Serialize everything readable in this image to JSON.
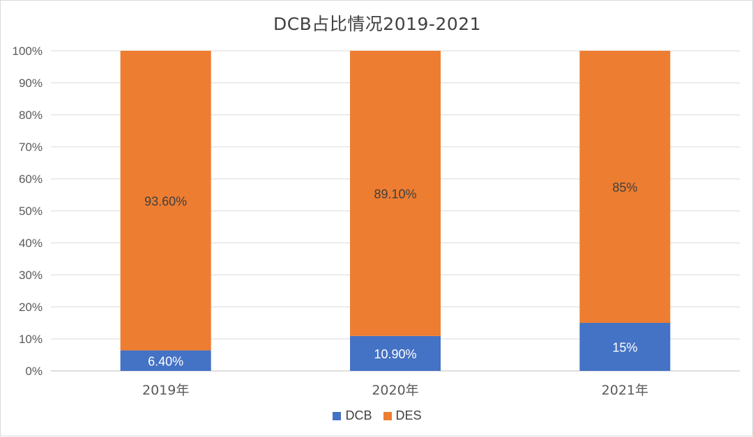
{
  "chart_data": {
    "type": "bar",
    "stacked": true,
    "title": "DCB占比情况2019-2021",
    "categories": [
      "2019年",
      "2020年",
      "2021年"
    ],
    "series": [
      {
        "name": "DCB",
        "color": "#4472c4",
        "values": [
          6.4,
          10.9,
          15
        ],
        "labels": [
          "6.40%",
          "10.90%",
          "15%"
        ]
      },
      {
        "name": "DES",
        "color": "#ed7d31",
        "values": [
          93.6,
          89.1,
          85
        ],
        "labels": [
          "93.60%",
          "89.10%",
          "85%"
        ]
      }
    ],
    "y_ticks": [
      "0%",
      "10%",
      "20%",
      "30%",
      "40%",
      "50%",
      "60%",
      "70%",
      "80%",
      "90%",
      "100%"
    ],
    "ylim": [
      0,
      100
    ],
    "grid": true,
    "legend_position": "bottom"
  }
}
